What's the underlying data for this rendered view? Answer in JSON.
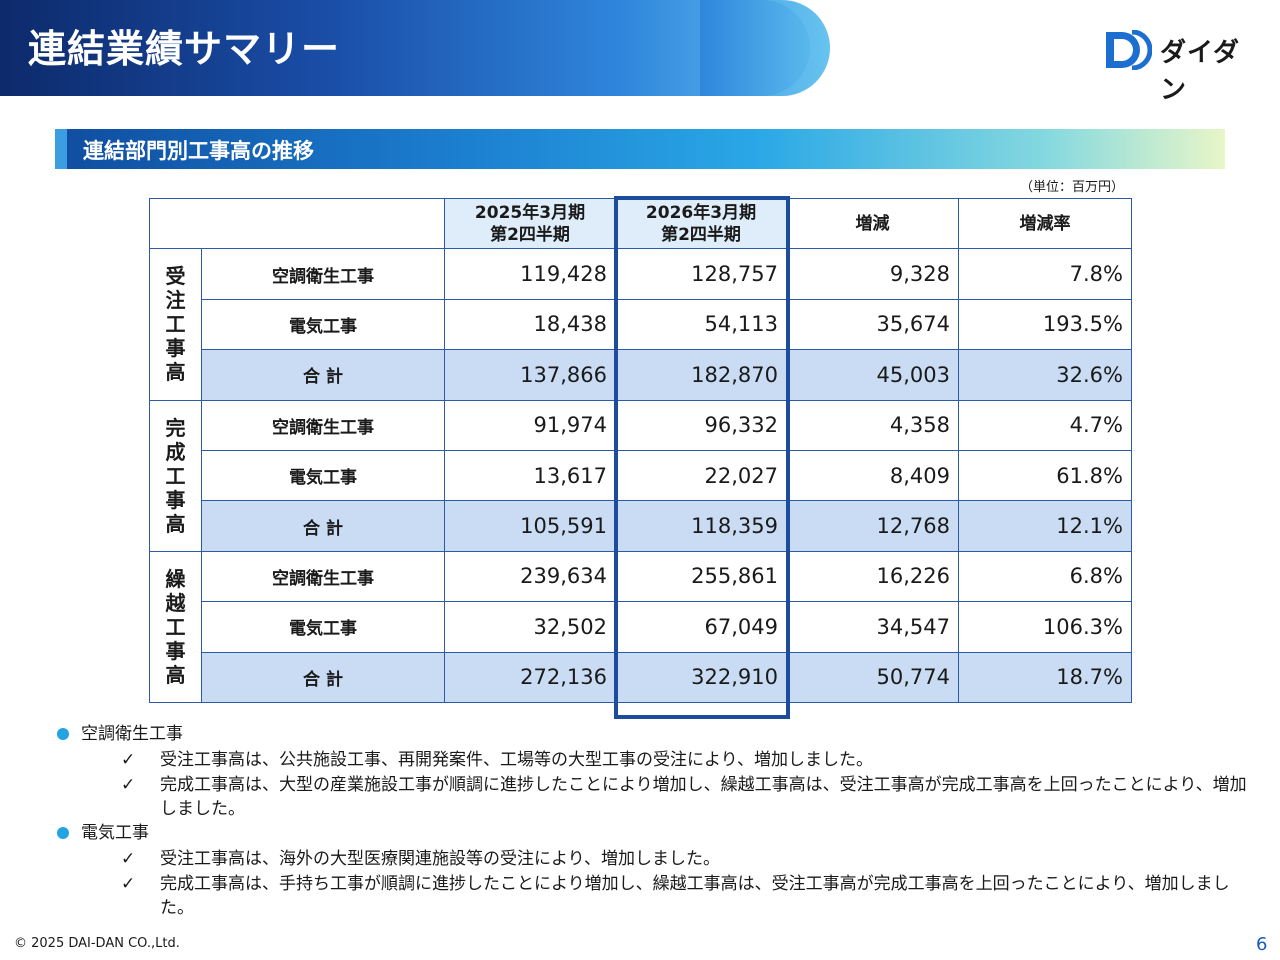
{
  "header": {
    "title": "連結業績サマリー"
  },
  "logo": {
    "text": "ダイダン"
  },
  "section": {
    "title": "連結部門別工事高の推移"
  },
  "unit_note": "（単位：百万円）",
  "table": {
    "columns": {
      "prev_line1": "2025年3月期",
      "prev_line2": "第2四半期",
      "curr_line1": "2026年3月期",
      "curr_line2": "第2四半期",
      "change": "増減",
      "change_rate": "増減率"
    },
    "groups": [
      {
        "label": [
          "受",
          "注",
          "工",
          "事",
          "高"
        ],
        "rows": [
          {
            "name": "空調衛生工事",
            "prev": "119,428",
            "curr": "128,757",
            "change": "9,328",
            "rate": "7.8%"
          },
          {
            "name": "電気工事",
            "prev": "18,438",
            "curr": "54,113",
            "change": "35,674",
            "rate": "193.5%"
          },
          {
            "name": "合 計",
            "prev": "137,866",
            "curr": "182,870",
            "change": "45,003",
            "rate": "32.6%"
          }
        ]
      },
      {
        "label": [
          "完",
          "成",
          "工",
          "事",
          "高"
        ],
        "rows": [
          {
            "name": "空調衛生工事",
            "prev": "91,974",
            "curr": "96,332",
            "change": "4,358",
            "rate": "4.7%"
          },
          {
            "name": "電気工事",
            "prev": "13,617",
            "curr": "22,027",
            "change": "8,409",
            "rate": "61.8%"
          },
          {
            "name": "合 計",
            "prev": "105,591",
            "curr": "118,359",
            "change": "12,768",
            "rate": "12.1%"
          }
        ]
      },
      {
        "label": [
          "繰",
          "越",
          "工",
          "事",
          "高"
        ],
        "rows": [
          {
            "name": "空調衛生工事",
            "prev": "239,634",
            "curr": "255,861",
            "change": "16,226",
            "rate": "6.8%"
          },
          {
            "name": "電気工事",
            "prev": "32,502",
            "curr": "67,049",
            "change": "34,547",
            "rate": "106.3%"
          },
          {
            "name": "合 計",
            "prev": "272,136",
            "curr": "322,910",
            "change": "50,774",
            "rate": "18.7%"
          }
        ]
      }
    ]
  },
  "bullets": [
    {
      "heading": "空調衛生工事",
      "items": [
        "受注工事高は、公共施設工事、再開発案件、工場等の大型工事の受注により、増加しました。",
        "完成工事高は、大型の産業施設工事が順調に進捗したことにより増加し、繰越工事高は、受注工事高が完成工事高を上回ったことにより、増加しました。"
      ]
    },
    {
      "heading": "電気工事",
      "items": [
        "受注工事高は、海外の大型医療関連施設等の受注により、増加しました。",
        "完成工事高は、手持ち工事が順調に進捗したことにより増加し、繰越工事高は、受注工事高が完成工事高を上回ったことにより、増加しました。"
      ]
    }
  ],
  "check_mark": "✓",
  "footer": {
    "copyright": "© 2025 DAI-DAN CO.,Ltd.",
    "page": "6"
  }
}
